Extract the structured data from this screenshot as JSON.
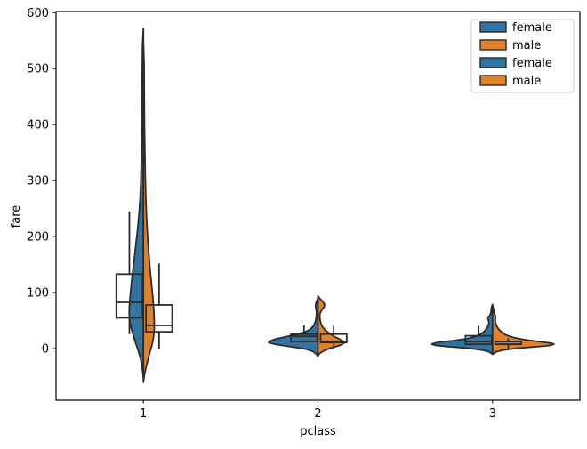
{
  "figure": {
    "background": "#ffffff"
  },
  "colors": {
    "female": "#3274a1",
    "male": "#e1812c",
    "edge": "#2b2b2b",
    "spine": "#000000",
    "text": "#000000",
    "legend_border": "#cccccc",
    "background": "#ffffff"
  },
  "chart_data": {
    "type": "violin",
    "subtype": "split-violin-with-unfilled-boxplot",
    "title": "",
    "xlabel": "pclass",
    "ylabel": "fare",
    "categories": [
      "1",
      "2",
      "3"
    ],
    "hues": [
      "female",
      "male"
    ],
    "xlim": [
      0.5,
      3.5
    ],
    "ylim": [
      -92,
      602
    ],
    "yticks": [
      0,
      100,
      200,
      300,
      400,
      500,
      600
    ],
    "grid": "off",
    "legend_position": "upper right",
    "legend": [
      {
        "label": "female",
        "hue": "female"
      },
      {
        "label": "male",
        "hue": "male"
      },
      {
        "label": "female",
        "hue": "female"
      },
      {
        "label": "male",
        "hue": "male"
      }
    ],
    "groups": [
      {
        "category": "1",
        "x": 1,
        "violins": [
          {
            "hue": "female",
            "side": "left",
            "profile": [
              [
                572,
                0
              ],
              [
                540,
                0.005
              ],
              [
                500,
                0.006
              ],
              [
                460,
                0.007
              ],
              [
                420,
                0.008
              ],
              [
                380,
                0.009
              ],
              [
                340,
                0.011
              ],
              [
                300,
                0.014
              ],
              [
                270,
                0.018
              ],
              [
                240,
                0.025
              ],
              [
                210,
                0.034
              ],
              [
                185,
                0.043
              ],
              [
                160,
                0.052
              ],
              [
                140,
                0.06
              ],
              [
                120,
                0.067
              ],
              [
                100,
                0.073
              ],
              [
                85,
                0.078
              ],
              [
                72,
                0.081
              ],
              [
                60,
                0.081
              ],
              [
                48,
                0.077
              ],
              [
                36,
                0.069
              ],
              [
                24,
                0.058
              ],
              [
                12,
                0.046
              ],
              [
                0,
                0.033
              ],
              [
                -12,
                0.021
              ],
              [
                -24,
                0.012
              ],
              [
                -38,
                0.005
              ],
              [
                -52,
                0
              ]
            ]
          },
          {
            "hue": "male",
            "side": "right",
            "profile": [
              [
                548,
                0
              ],
              [
                510,
                0.004
              ],
              [
                470,
                0.005
              ],
              [
                430,
                0.006
              ],
              [
                390,
                0.007
              ],
              [
                350,
                0.009
              ],
              [
                310,
                0.011
              ],
              [
                270,
                0.014
              ],
              [
                235,
                0.018
              ],
              [
                200,
                0.024
              ],
              [
                170,
                0.031
              ],
              [
                140,
                0.039
              ],
              [
                115,
                0.047
              ],
              [
                92,
                0.054
              ],
              [
                72,
                0.059
              ],
              [
                55,
                0.062
              ],
              [
                42,
                0.063
              ],
              [
                30,
                0.062
              ],
              [
                18,
                0.057
              ],
              [
                6,
                0.049
              ],
              [
                -6,
                0.038
              ],
              [
                -20,
                0.026
              ],
              [
                -35,
                0.014
              ],
              [
                -50,
                0.005
              ],
              [
                -60,
                0
              ]
            ]
          }
        ],
        "boxes": [
          {
            "hue": "female",
            "offset": -0.08,
            "width": 0.15,
            "whisker_low": 25.9,
            "q1": 55,
            "median": 82.7,
            "q3": 133,
            "whisker_high": 245
          },
          {
            "hue": "male",
            "offset": 0.09,
            "width": 0.15,
            "whisker_low": 0,
            "q1": 30,
            "median": 41.5,
            "q3": 78,
            "whisker_high": 152
          }
        ]
      },
      {
        "category": "2",
        "x": 2,
        "violins": [
          {
            "hue": "female",
            "side": "left",
            "profile": [
              [
                90,
                0
              ],
              [
                85,
                0.007
              ],
              [
                80,
                0.012
              ],
              [
                75,
                0.013
              ],
              [
                70,
                0.01
              ],
              [
                64,
                0.008
              ],
              [
                58,
                0.009
              ],
              [
                52,
                0.012
              ],
              [
                46,
                0.017
              ],
              [
                40,
                0.027
              ],
              [
                34,
                0.047
              ],
              [
                29,
                0.08
              ],
              [
                25,
                0.125
              ],
              [
                21,
                0.185
              ],
              [
                17,
                0.245
              ],
              [
                14,
                0.272
              ],
              [
                11,
                0.282
              ],
              [
                8,
                0.25
              ],
              [
                5,
                0.19
              ],
              [
                2,
                0.122
              ],
              [
                -1,
                0.068
              ],
              [
                -5,
                0.03
              ],
              [
                -9,
                0.011
              ],
              [
                -14,
                0
              ]
            ]
          },
          {
            "hue": "male",
            "side": "right",
            "profile": [
              [
                94,
                0
              ],
              [
                89,
                0.012
              ],
              [
                84,
                0.028
              ],
              [
                79,
                0.038
              ],
              [
                74,
                0.035
              ],
              [
                69,
                0.022
              ],
              [
                63,
                0.012
              ],
              [
                57,
                0.01
              ],
              [
                51,
                0.012
              ],
              [
                45,
                0.017
              ],
              [
                39,
                0.026
              ],
              [
                33,
                0.042
              ],
              [
                28,
                0.062
              ],
              [
                24,
                0.082
              ],
              [
                20,
                0.105
              ],
              [
                16,
                0.13
              ],
              [
                13,
                0.147
              ],
              [
                10,
                0.15
              ],
              [
                7,
                0.135
              ],
              [
                4,
                0.105
              ],
              [
                1,
                0.072
              ],
              [
                -3,
                0.04
              ],
              [
                -7,
                0.017
              ],
              [
                -12,
                0
              ]
            ]
          }
        ],
        "boxes": [
          {
            "hue": "female",
            "offset": -0.08,
            "width": 0.15,
            "whisker_low": 10.5,
            "q1": 13,
            "median": 22,
            "q3": 26,
            "whisker_high": 41.6
          },
          {
            "hue": "male",
            "offset": 0.09,
            "width": 0.15,
            "whisker_low": 0,
            "q1": 11,
            "median": 13,
            "q3": 26,
            "whisker_high": 41.6
          }
        ]
      },
      {
        "category": "3",
        "x": 3,
        "violins": [
          {
            "hue": "female",
            "side": "left",
            "profile": [
              [
                79,
                0
              ],
              [
                75,
                0.005
              ],
              [
                70,
                0.008
              ],
              [
                65,
                0.009
              ],
              [
                60,
                0.015
              ],
              [
                56,
                0.026
              ],
              [
                52,
                0.026
              ],
              [
                48,
                0.021
              ],
              [
                44,
                0.022
              ],
              [
                40,
                0.027
              ],
              [
                36,
                0.034
              ],
              [
                32,
                0.044
              ],
              [
                28,
                0.058
              ],
              [
                24,
                0.08
              ],
              [
                20,
                0.118
              ],
              [
                17,
                0.165
              ],
              [
                14,
                0.235
              ],
              [
                12,
                0.292
              ],
              [
                10,
                0.332
              ],
              [
                8,
                0.348
              ],
              [
                6,
                0.328
              ],
              [
                4,
                0.268
              ],
              [
                2,
                0.188
              ],
              [
                0,
                0.118
              ],
              [
                -3,
                0.052
              ],
              [
                -6,
                0.019
              ],
              [
                -10,
                0
              ]
            ]
          },
          {
            "hue": "male",
            "side": "right",
            "profile": [
              [
                76,
                0
              ],
              [
                71,
                0.005
              ],
              [
                66,
                0.008
              ],
              [
                61,
                0.012
              ],
              [
                57,
                0.017
              ],
              [
                53,
                0.016
              ],
              [
                49,
                0.015
              ],
              [
                45,
                0.018
              ],
              [
                41,
                0.023
              ],
              [
                37,
                0.03
              ],
              [
                33,
                0.04
              ],
              [
                29,
                0.053
              ],
              [
                25,
                0.073
              ],
              [
                21,
                0.105
              ],
              [
                18,
                0.148
              ],
              [
                15,
                0.205
              ],
              [
                12,
                0.28
              ],
              [
                10,
                0.33
              ],
              [
                8,
                0.352
              ],
              [
                6,
                0.333
              ],
              [
                4,
                0.272
              ],
              [
                2,
                0.192
              ],
              [
                0,
                0.12
              ],
              [
                -3,
                0.054
              ],
              [
                -6,
                0.02
              ],
              [
                -10,
                0
              ]
            ]
          }
        ],
        "boxes": [
          {
            "hue": "female",
            "offset": -0.08,
            "width": 0.15,
            "whisker_low": 6.75,
            "q1": 7.75,
            "median": 12.5,
            "q3": 23,
            "whisker_high": 41
          },
          {
            "hue": "male",
            "offset": 0.09,
            "width": 0.15,
            "whisker_low": 0,
            "q1": 7.75,
            "median": 7.9,
            "q3": 12.5,
            "whisker_high": 18.8
          }
        ]
      }
    ]
  }
}
